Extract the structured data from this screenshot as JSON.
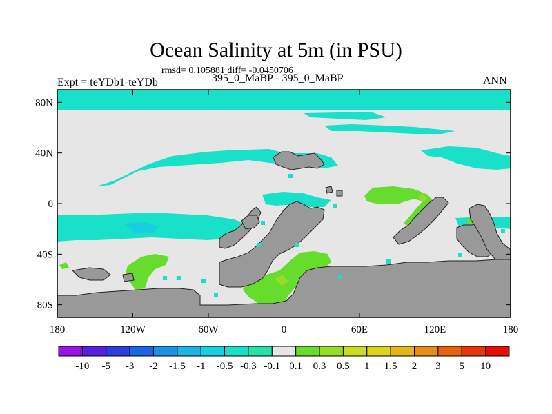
{
  "chart_data": {
    "type": "heatmap",
    "title": "Ocean Salinity at 5m (in PSU)",
    "subtitle": "rmsd= 0.105881 diff= -0.0450706",
    "left_label": "Expt = teYDb1-teYDb",
    "center_label": "395_0_MaBP - 395_0_MaBP",
    "right_label": "ANN",
    "x_ticks": [
      "180",
      "120W",
      "60W",
      "0",
      "60E",
      "120E",
      "180"
    ],
    "x_tick_values": [
      -180,
      -120,
      -60,
      0,
      60,
      120,
      180
    ],
    "y_ticks": [
      "80N",
      "40N",
      "0",
      "40S",
      "80S"
    ],
    "y_tick_values": [
      80,
      40,
      0,
      -40,
      -80
    ],
    "xlim": [
      -180,
      180
    ],
    "ylim": [
      -90,
      90
    ],
    "colorbar": {
      "labels": [
        "-10",
        "-5",
        "-3",
        "-2",
        "-1.5",
        "-1",
        "-0.5",
        "-0.3",
        "-0.1",
        "0.1",
        "0.3",
        "0.5",
        "1",
        "1.5",
        "2",
        "3",
        "5",
        "10"
      ],
      "colors": [
        "#9a12e6",
        "#5a1fe0",
        "#2b3fe0",
        "#1c64e6",
        "#1e8fe6",
        "#1cb4e0",
        "#17cfe0",
        "#19e0c8",
        "#27e0a8",
        "#e6e6e6",
        "#66dc2c",
        "#97dc26",
        "#c8dc22",
        "#dcd41c",
        "#e6b418",
        "#e68c14",
        "#e66210",
        "#e6360c",
        "#e60d08"
      ]
    },
    "colors": {
      "land": "#999999",
      "near_zero": "#e6e6e6",
      "fresher_small": "#19e0c8",
      "fresher_mid": "#17cfe0",
      "saltier_small": "#66dc2c",
      "saltier_mid": "#97dc26",
      "saltier_large": "#c8dc22"
    }
  }
}
